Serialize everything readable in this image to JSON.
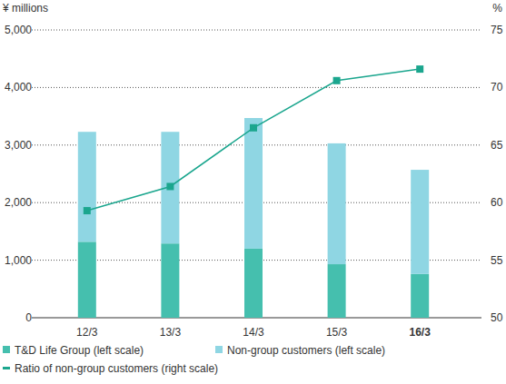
{
  "chart_data": {
    "type": "bar",
    "stacked": true,
    "grid": true,
    "legend": "bottom",
    "y_label": "¥ millions",
    "y2_label": "%",
    "categories": [
      "12/3",
      "13/3",
      "14/3",
      "15/3",
      "16/3"
    ],
    "ylim": [
      0,
      5000
    ],
    "yticks": [
      0,
      {
        "value": 1000,
        "label": "1,000"
      },
      {
        "value": 2000,
        "label": "2,000"
      },
      {
        "value": 3000,
        "label": "3,000"
      },
      {
        "value": 4000,
        "label": "4,000"
      },
      {
        "value": 5000,
        "label": "5,000"
      }
    ],
    "y2lim": [
      50,
      75
    ],
    "y2ticks": [
      50,
      55,
      60,
      65,
      70,
      75
    ],
    "series": [
      {
        "name": "T&D Life Group (left scale)",
        "type": "bar",
        "color": "#45bfae",
        "values": [
          1320,
          1290,
          1200,
          930,
          760
        ]
      },
      {
        "name": "Non-group customers (left scale)",
        "type": "bar",
        "color": "#8fd6e3",
        "values": [
          1910,
          1940,
          2270,
          2100,
          1810
        ]
      },
      {
        "name": "Ratio of non-group customers (right scale)",
        "type": "line",
        "axis": "y2",
        "color": "#1ba68e",
        "marker": "square",
        "values": [
          59.3,
          61.4,
          66.5,
          70.6,
          71.6
        ]
      }
    ]
  }
}
